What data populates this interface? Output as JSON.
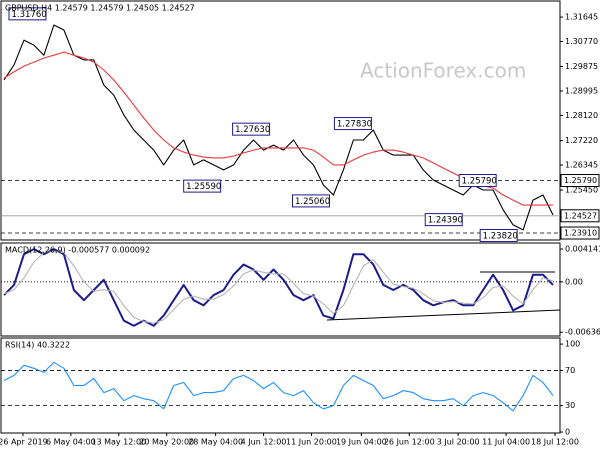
{
  "chart_data": [
    {
      "type": "line",
      "title": "GBPUSD,H4  1.24579 1.24579 1.24505 1.24527",
      "watermark": "ActionForex.com",
      "xlim": [
        -0.3,
        55.7
      ],
      "ylim": [
        1.2366,
        1.3222
      ],
      "yticks": [
        1.31645,
        {
          "value": 1.3077,
          "label": "1.30770"
        },
        1.29875,
        1.28995,
        {
          "value": 1.2812,
          "label": "1.28120"
        },
        {
          "value": 1.2722,
          "label": "1.27220"
        },
        1.26345,
        {
          "value": 1.2545,
          "label": "1.25450"
        }
      ],
      "grid": false,
      "series": [
        {
          "color": "#000000",
          "values": [
            1.2939,
            1.2993,
            1.3082,
            1.3064,
            1.3028,
            1.3136,
            1.3118,
            1.3028,
            1.3011,
            1.3011,
            1.2921,
            1.2885,
            1.2814,
            1.276,
            1.2724,
            1.2688,
            1.2635,
            1.2688,
            1.2724,
            1.2635,
            1.2653,
            1.2635,
            1.2617,
            1.2635,
            1.2688,
            1.2724,
            1.2688,
            1.2706,
            1.2688,
            1.2724,
            1.267,
            1.2635,
            1.2563,
            1.2527,
            1.2617,
            1.2724,
            1.2724,
            1.276,
            1.2688,
            1.267,
            1.267,
            1.267,
            1.2617,
            1.2581,
            1.2563,
            1.2545,
            1.2527,
            1.2563,
            1.2545,
            1.2545,
            1.2474,
            1.242,
            1.2402,
            1.2509,
            1.2527,
            1.2456
          ]
        },
        {
          "color": "#e8383d",
          "values": [
            1.2946,
            1.2968,
            1.2989,
            1.3003,
            1.3018,
            1.3028,
            1.3039,
            1.3028,
            1.3018,
            1.3003,
            1.2975,
            1.2939,
            1.2896,
            1.2849,
            1.2803,
            1.276,
            1.2724,
            1.2696,
            1.2681,
            1.267,
            1.2663,
            1.266,
            1.266,
            1.2667,
            1.2678,
            1.2688,
            1.2696,
            1.2696,
            1.2696,
            1.2696,
            1.2696,
            1.2688,
            1.2663,
            1.2635,
            1.2635,
            1.2653,
            1.267,
            1.2681,
            1.2688,
            1.2688,
            1.2681,
            1.267,
            1.266,
            1.2642,
            1.2624,
            1.2606,
            1.2588,
            1.257,
            1.256,
            1.2552,
            1.2527,
            1.2509,
            1.2491,
            1.2491,
            1.2491,
            1.2491
          ]
        }
      ],
      "levels": [
        {
          "value": 1.2579,
          "label": "1.25790",
          "style": "dashed"
        },
        {
          "value": 1.24527,
          "label": "1.24527",
          "style": "solid"
        },
        {
          "value": 1.2391,
          "label": "1.23910",
          "style": "dashed"
        }
      ],
      "annotations": [
        {
          "label": "1.31760",
          "value": 1.3176,
          "x": 0.5
        },
        {
          "label": "1.27630",
          "value": 1.2763,
          "x": 22.9
        },
        {
          "label": "1.25590",
          "value": 1.2559,
          "x": 18
        },
        {
          "label": "1.25060",
          "value": 1.2506,
          "x": 28.9
        },
        {
          "label": "1.27830",
          "value": 1.2783,
          "x": 33.1
        },
        {
          "label": "1.24390",
          "value": 1.2439,
          "x": 42.2
        },
        {
          "label": "1.25790",
          "value": 1.2579,
          "x": 45.6
        },
        {
          "label": "1.23820",
          "value": 1.2382,
          "x": 47.7
        }
      ]
    },
    {
      "type": "line",
      "title": "MACD(12,26,9) -0.000577 0.000092",
      "xlim": [
        -0.3,
        55.7
      ],
      "ylim": [
        -0.00684,
        0.0049
      ],
      "yticks": [
        0.004141,
        {
          "value": 0,
          "label": "0.00"
        },
        -0.006365
      ],
      "grid": false,
      "series": [
        {
          "color": "#1c1c8c",
          "values": [
            -0.00168,
            -0.00039,
            0.00348,
            0.00413,
            0.00348,
            0.00413,
            0.00348,
            -0.00103,
            -0.00232,
            -0.00103,
            0.00026,
            -0.00232,
            -0.0049,
            -0.00555,
            -0.0049,
            -0.00555,
            -0.00426,
            -0.00232,
            -0.00039,
            -0.00232,
            -0.00297,
            -0.00168,
            -0.00103,
            0.0009,
            0.00219,
            0.00155,
            0.00026,
            0.00155,
            0.00026,
            -0.00168,
            -0.00232,
            -0.00168,
            -0.00426,
            -0.00464,
            -0.00103,
            0.00348,
            0.00348,
            0.00219,
            -0.00039,
            -0.00103,
            -0.00039,
            -0.00103,
            -0.00232,
            -0.00297,
            -0.00258,
            -0.00232,
            -0.00297,
            -0.00297,
            -0.00103,
            0.0009,
            -0.00103,
            -0.00361,
            -0.00297,
            0.0009,
            0.0009,
            -0.00039
          ]
        },
        {
          "color": "#b4b4b4",
          "values": [
            -0.0015,
            -0.001,
            0.0005,
            0.0025,
            0.0037,
            0.0038,
            0.0037,
            0.002,
            0,
            -0.0012,
            -0.001,
            -0.0012,
            -0.003,
            -0.0045,
            -0.005,
            -0.0052,
            -0.0048,
            -0.0035,
            -0.0022,
            -0.0018,
            -0.0022,
            -0.0022,
            -0.0016,
            -0.0005,
            0.001,
            0.0015,
            0.0012,
            0.001,
            0.001,
            -0.0002,
            -0.0015,
            -0.0018,
            -0.0028,
            -0.004,
            -0.003,
            -0.0005,
            0.002,
            0.0028,
            0.0012,
            -0.0003,
            -0.0006,
            -0.0008,
            -0.0015,
            -0.0024,
            -0.0026,
            -0.0025,
            -0.0027,
            -0.0028,
            -0.002,
            -0.0007,
            -0.0005,
            -0.0018,
            -0.0028,
            -0.001,
            0.0005,
            0.0001
          ]
        }
      ],
      "levels": [
        {
          "value": 0,
          "style": "dotted"
        }
      ]
    },
    {
      "type": "line",
      "title": "RSI(14) 40.3222",
      "xlim": [
        -0.3,
        55.7
      ],
      "ylim": [
        -1.1,
        106.9
      ],
      "yticks": [
        100,
        70,
        30,
        0
      ],
      "grid": false,
      "xticks": [
        {
          "value": 1.9,
          "label": "26 Apr 2019"
        },
        {
          "value": 6.7,
          "label": "6 May 04:00"
        },
        {
          "value": 11.5,
          "label": "13 May 12:00"
        },
        {
          "value": 16.3,
          "label": "20 May 20:00"
        },
        {
          "value": 21.2,
          "label": "28 May 04:00"
        },
        {
          "value": 26,
          "label": "4 Jun 12:00"
        },
        {
          "value": 30.8,
          "label": "11 Jun 20:00"
        },
        {
          "value": 35.8,
          "label": "19 Jun 04:00"
        },
        {
          "value": 40.6,
          "label": "26 Jun 12:00"
        },
        {
          "value": 45.5,
          "label": "3 Jul 20:00"
        },
        {
          "value": 50.3,
          "label": "11 Jul 04:00"
        },
        {
          "value": 55.2,
          "label": "18 Jul 12:00"
        }
      ],
      "series": [
        {
          "color": "#1e90ff",
          "values": [
            58.6,
            64.4,
            75.9,
            72.4,
            67.8,
            79.3,
            72.4,
            52.9,
            52.9,
            60.9,
            44.8,
            49.4,
            35.6,
            41.4,
            37.9,
            35.6,
            26.4,
            52.9,
            56.3,
            41.4,
            44.8,
            44.8,
            47.1,
            60.9,
            64.4,
            58.6,
            49.4,
            56.3,
            44.8,
            41.4,
            47.1,
            33.3,
            26.4,
            29.9,
            52.9,
            64.4,
            58.6,
            52.9,
            37.9,
            41.4,
            47.1,
            44.8,
            37.9,
            35.6,
            35.6,
            37.9,
            29.9,
            41.4,
            44.8,
            41.4,
            33.3,
            24.1,
            41.4,
            64.4,
            56.3,
            41.4
          ]
        }
      ],
      "levels": [
        {
          "value": 70,
          "style": "dashed"
        },
        {
          "value": 30,
          "style": "dashed"
        }
      ]
    }
  ]
}
